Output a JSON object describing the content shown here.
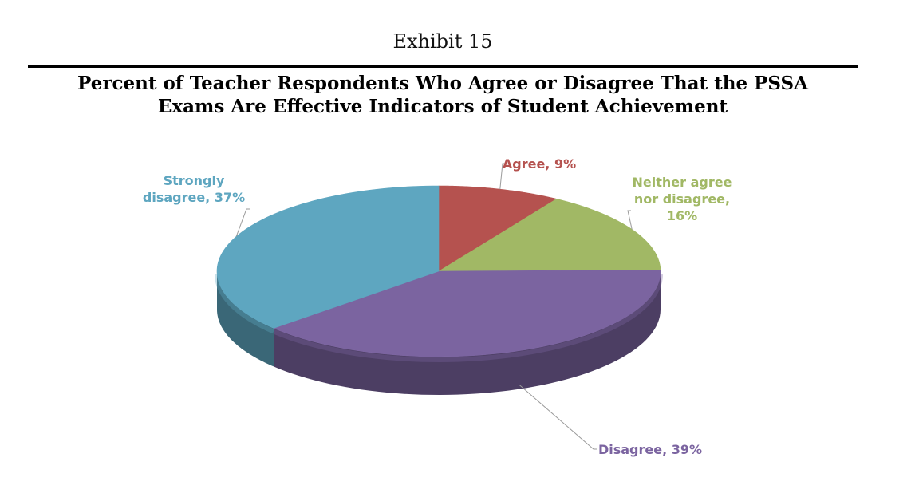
{
  "exhibit_label": "Exhibit 15",
  "title_lines": [
    "Percent of Teacher Respondents Who Agree or Disagree That the PSSA",
    "Exams Are Effective Indicators of Student Achievement"
  ],
  "chart_data": {
    "type": "pie",
    "style": "3d",
    "title": "Percent of Teacher Respondents Who Agree or Disagree That the PSSA Exams Are Effective Indicators of Student Achievement",
    "unit": "%",
    "slices": [
      {
        "key": "agree",
        "label_lines": [
          "Agree, 9%"
        ],
        "value": 9,
        "color": "#B5524F"
      },
      {
        "key": "neither",
        "label_lines": [
          "Neither agree",
          "nor disagree,",
          "16%"
        ],
        "value": 16,
        "color": "#A1B865"
      },
      {
        "key": "disagree",
        "label_lines": [
          "Disagree, 39%"
        ],
        "value": 39,
        "color": "#7B64A0"
      },
      {
        "key": "strongly-disagree",
        "label_lines": [
          "Strongly",
          "disagree, 37%"
        ],
        "value": 37,
        "color": "#5EA6C0"
      }
    ]
  }
}
